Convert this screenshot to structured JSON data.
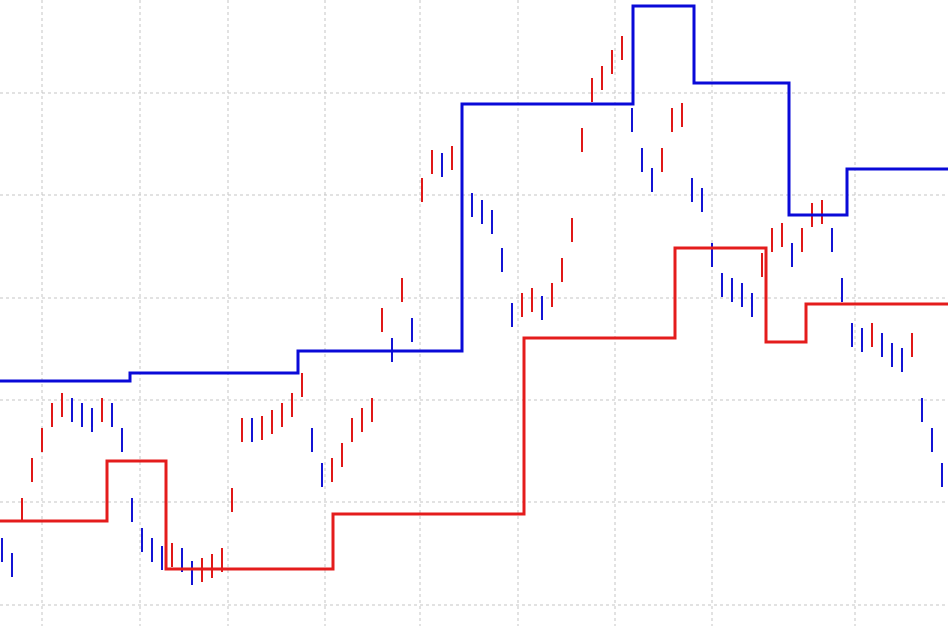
{
  "chart_data": {
    "type": "range-bar",
    "xlim": [
      0,
      948
    ],
    "ylim": [
      0,
      626
    ],
    "xticks": [
      42,
      140,
      228,
      325,
      420,
      518,
      615,
      712,
      855
    ],
    "yticks": [
      21,
      124,
      226,
      328,
      431,
      533
    ],
    "grid": true,
    "up_color": "#e01818",
    "down_color": "#1414d4",
    "x": [
      2,
      12,
      22,
      32,
      42,
      52,
      62,
      72,
      82,
      92,
      102,
      112,
      122,
      132,
      142,
      152,
      162,
      172,
      182,
      192,
      202,
      212,
      222,
      232,
      242,
      252,
      262,
      272,
      282,
      292,
      302,
      312,
      322,
      332,
      342,
      352,
      362,
      372,
      382,
      392,
      402,
      412,
      422,
      432,
      442,
      452,
      462,
      472,
      482,
      492,
      502,
      512,
      522,
      532,
      542,
      552,
      562,
      572,
      582,
      592,
      602,
      612,
      622,
      632,
      642,
      652,
      662,
      672,
      682,
      692,
      702,
      712,
      722,
      732,
      742,
      752,
      762,
      772,
      782,
      792,
      802,
      812,
      822,
      832,
      842,
      852,
      862,
      872,
      882,
      892,
      902,
      912,
      922,
      932,
      942
    ],
    "high": [
      88,
      73,
      128,
      168,
      198,
      223,
      233,
      228,
      223,
      218,
      228,
      223,
      198,
      128,
      98,
      88,
      80,
      83,
      78,
      65,
      68,
      72,
      78,
      138,
      208,
      208,
      210,
      216,
      223,
      233,
      253,
      198,
      163,
      168,
      183,
      208,
      218,
      228,
      318,
      288,
      348,
      308,
      448,
      476,
      473,
      480,
      448,
      433,
      426,
      416,
      378,
      323,
      333,
      338,
      330,
      343,
      368,
      408,
      498,
      548,
      560,
      576,
      590,
      518,
      478,
      458,
      478,
      518,
      523,
      448,
      438,
      383,
      353,
      348,
      343,
      333,
      373,
      398,
      403,
      383,
      398,
      423,
      426,
      398,
      348,
      303,
      298,
      303,
      293,
      283,
      278,
      293,
      228,
      198,
      163
    ],
    "low": [
      64,
      49,
      104,
      144,
      174,
      199,
      209,
      204,
      199,
      194,
      204,
      199,
      174,
      104,
      74,
      64,
      56,
      59,
      54,
      41,
      44,
      48,
      54,
      114,
      184,
      184,
      186,
      192,
      199,
      209,
      229,
      174,
      139,
      144,
      159,
      184,
      194,
      204,
      294,
      264,
      324,
      284,
      424,
      452,
      449,
      456,
      424,
      409,
      402,
      392,
      354,
      299,
      309,
      314,
      306,
      319,
      344,
      384,
      474,
      524,
      536,
      552,
      566,
      494,
      454,
      434,
      454,
      494,
      499,
      424,
      414,
      359,
      329,
      324,
      319,
      309,
      349,
      374,
      379,
      359,
      374,
      399,
      402,
      374,
      324,
      279,
      274,
      279,
      269,
      259,
      254,
      269,
      204,
      174,
      139
    ],
    "series": [
      {
        "type": "step",
        "color": "#0a0ad8",
        "x": [
          0,
          130,
          298,
          462,
          633,
          694,
          789,
          847,
          948
        ],
        "values": [
          245,
          253,
          275,
          522,
          620,
          543,
          411,
          457,
          457
        ]
      },
      {
        "type": "step",
        "color": "#e41c1c",
        "x": [
          0,
          107,
          166,
          333,
          524,
          675,
          766,
          806,
          948
        ],
        "values": [
          105,
          165,
          57,
          112,
          288,
          378,
          284,
          322,
          322
        ]
      }
    ]
  }
}
